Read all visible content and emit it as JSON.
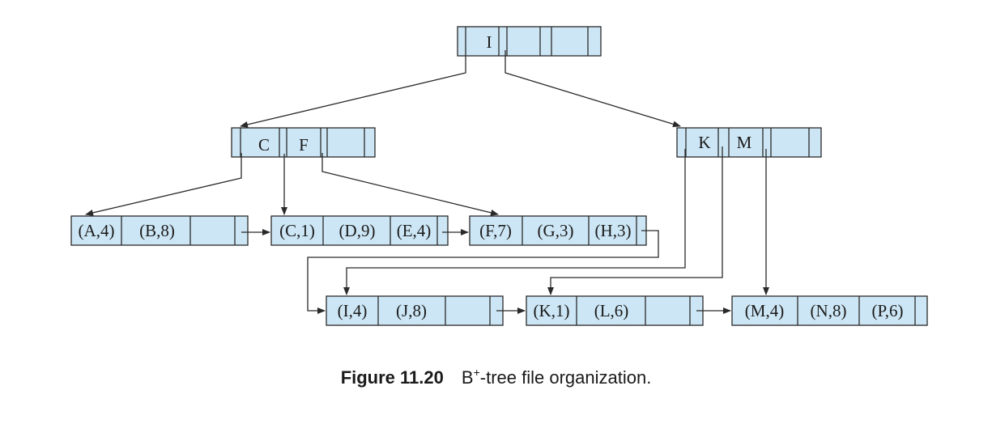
{
  "nodes": {
    "root": {
      "keys": [
        "I",
        "",
        "",
        ""
      ]
    },
    "internal_left": {
      "keys": [
        "C",
        "F",
        ""
      ]
    },
    "internal_right": {
      "keys": [
        "K",
        "M",
        ""
      ]
    },
    "leaf_1": {
      "records": [
        "(A,4)",
        "(B,8)",
        ""
      ]
    },
    "leaf_2": {
      "records": [
        "(C,1)",
        "(D,9)",
        "(E,4)"
      ]
    },
    "leaf_3": {
      "records": [
        "(F,7)",
        "(G,3)",
        "(H,3)"
      ]
    },
    "leaf_4": {
      "records": [
        "(I,4)",
        "(J,8)",
        ""
      ]
    },
    "leaf_5": {
      "records": [
        "(K,1)",
        "(L,6)",
        ""
      ]
    },
    "leaf_6": {
      "records": [
        "(M,4)",
        "(N,8)",
        "(P,6)"
      ]
    }
  },
  "caption": {
    "label": "Figure 11.20",
    "text_main": "B",
    "text_sup": "+",
    "text_rest": "-tree file organization."
  }
}
